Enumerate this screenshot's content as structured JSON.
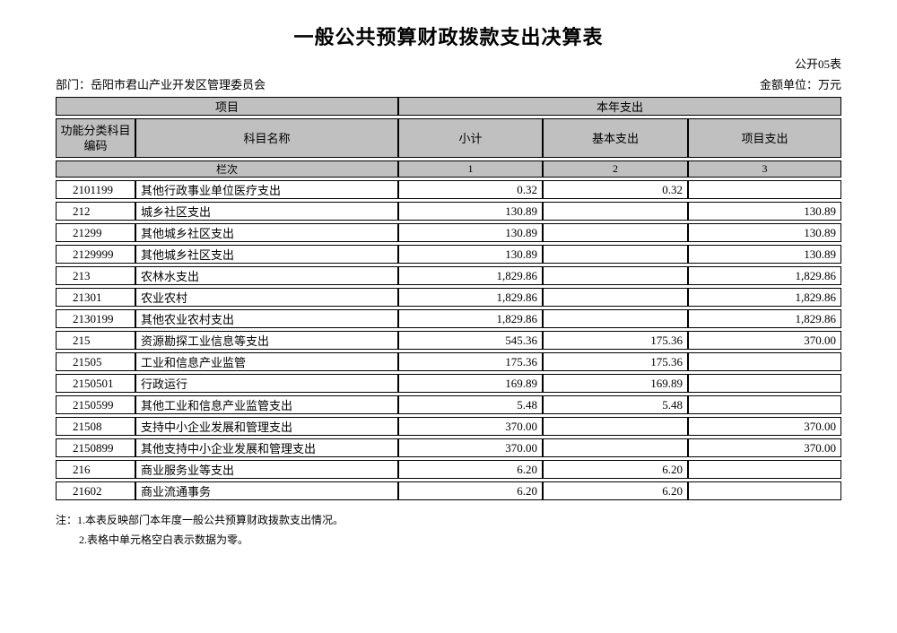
{
  "page": {
    "title": "一般公共预算财政拨款支出决算表",
    "form_label": "公开05表",
    "department": "部门：岳阳市君山产业开发区管理委员会",
    "unit": "金额单位：万元"
  },
  "table": {
    "header": {
      "group_project": "项目",
      "group_year": "本年支出",
      "code_line1": "功能分类科目",
      "code_line2": "编码",
      "name": "科目名称",
      "subtotal": "小计",
      "basic": "基本支出",
      "project": "项目支出",
      "lanci": "栏次",
      "nums": [
        "1",
        "2",
        "3"
      ]
    },
    "rows": [
      {
        "code": "2101199",
        "name": "其他行政事业单位医疗支出",
        "subtotal": "0.32",
        "basic": "0.32",
        "project": ""
      },
      {
        "code": "212",
        "name": "城乡社区支出",
        "subtotal": "130.89",
        "basic": "",
        "project": "130.89"
      },
      {
        "code": "21299",
        "name": "其他城乡社区支出",
        "subtotal": "130.89",
        "basic": "",
        "project": "130.89"
      },
      {
        "code": "2129999",
        "name": "其他城乡社区支出",
        "subtotal": "130.89",
        "basic": "",
        "project": "130.89"
      },
      {
        "code": "213",
        "name": "农林水支出",
        "subtotal": "1,829.86",
        "basic": "",
        "project": "1,829.86"
      },
      {
        "code": "21301",
        "name": "农业农村",
        "subtotal": "1,829.86",
        "basic": "",
        "project": "1,829.86"
      },
      {
        "code": "2130199",
        "name": "其他农业农村支出",
        "subtotal": "1,829.86",
        "basic": "",
        "project": "1,829.86"
      },
      {
        "code": "215",
        "name": "资源勘探工业信息等支出",
        "subtotal": "545.36",
        "basic": "175.36",
        "project": "370.00"
      },
      {
        "code": "21505",
        "name": "工业和信息产业监管",
        "subtotal": "175.36",
        "basic": "175.36",
        "project": ""
      },
      {
        "code": "2150501",
        "name": "行政运行",
        "subtotal": "169.89",
        "basic": "169.89",
        "project": ""
      },
      {
        "code": "2150599",
        "name": "其他工业和信息产业监管支出",
        "subtotal": "5.48",
        "basic": "5.48",
        "project": ""
      },
      {
        "code": "21508",
        "name": "支持中小企业发展和管理支出",
        "subtotal": "370.00",
        "basic": "",
        "project": "370.00"
      },
      {
        "code": "2150899",
        "name": "其他支持中小企业发展和管理支出",
        "subtotal": "370.00",
        "basic": "",
        "project": "370.00"
      },
      {
        "code": "216",
        "name": "商业服务业等支出",
        "subtotal": "6.20",
        "basic": "6.20",
        "project": ""
      },
      {
        "code": "21602",
        "name": "商业流通事务",
        "subtotal": "6.20",
        "basic": "6.20",
        "project": ""
      }
    ]
  },
  "notes": {
    "prefix": "注：",
    "items": [
      "1.本表反映部门本年度一般公共预算财政拨款支出情况。",
      "2.表格中单元格空白表示数据为零。"
    ]
  },
  "colors": {
    "header_bg": "#c0c0c0",
    "border": "#000000"
  }
}
